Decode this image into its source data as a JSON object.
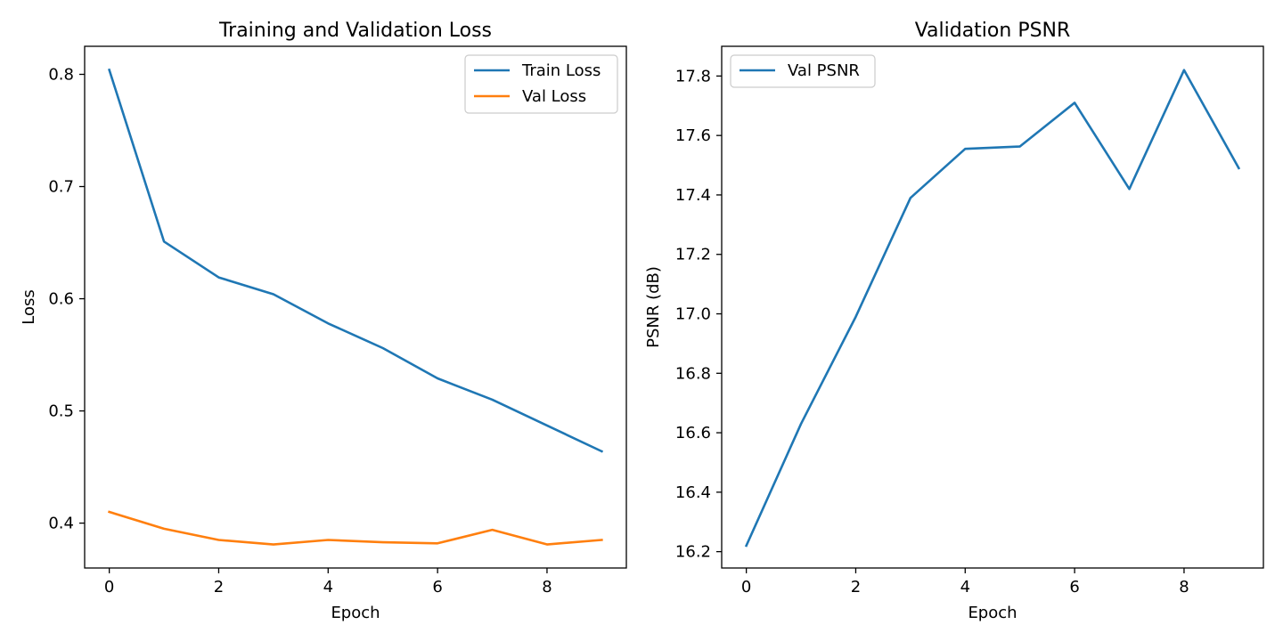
{
  "chart_data": [
    {
      "type": "line",
      "title": "Training and Validation Loss",
      "xlabel": "Epoch",
      "ylabel": "Loss",
      "xlim": [
        -0.45,
        9.45
      ],
      "ylim": [
        0.36,
        0.825
      ],
      "xticks": [
        0,
        2,
        4,
        6,
        8
      ],
      "yticks": [
        0.4,
        0.5,
        0.6,
        0.7,
        0.8
      ],
      "ytick_labels": [
        "0.4",
        "0.5",
        "0.6",
        "0.7",
        "0.8"
      ],
      "legend_position": "top-right",
      "grid": false,
      "x": [
        0,
        1,
        2,
        3,
        4,
        5,
        6,
        7,
        8,
        9
      ],
      "series": [
        {
          "name": "Train Loss",
          "color": "#1f77b4",
          "values": [
            0.804,
            0.651,
            0.619,
            0.604,
            0.578,
            0.556,
            0.529,
            0.51,
            0.487,
            0.464
          ]
        },
        {
          "name": "Val Loss",
          "color": "#ff7f0e",
          "values": [
            0.41,
            0.395,
            0.385,
            0.381,
            0.385,
            0.383,
            0.382,
            0.394,
            0.381,
            0.385
          ]
        }
      ]
    },
    {
      "type": "line",
      "title": "Validation PSNR",
      "xlabel": "Epoch",
      "ylabel": "PSNR (dB)",
      "xlim": [
        -0.45,
        9.45
      ],
      "ylim": [
        16.145,
        17.9
      ],
      "xticks": [
        0,
        2,
        4,
        6,
        8
      ],
      "yticks": [
        16.2,
        16.4,
        16.6,
        16.8,
        17.0,
        17.2,
        17.4,
        17.6,
        17.8
      ],
      "ytick_labels": [
        "16.2",
        "16.4",
        "16.6",
        "16.8",
        "17.0",
        "17.2",
        "17.4",
        "17.6",
        "17.8"
      ],
      "legend_position": "top-left",
      "grid": false,
      "x": [
        0,
        1,
        2,
        3,
        4,
        5,
        6,
        7,
        8,
        9
      ],
      "series": [
        {
          "name": "Val PSNR",
          "color": "#1f77b4",
          "values": [
            16.22,
            16.63,
            16.99,
            17.39,
            17.555,
            17.563,
            17.71,
            17.42,
            17.82,
            17.49
          ]
        }
      ]
    }
  ]
}
